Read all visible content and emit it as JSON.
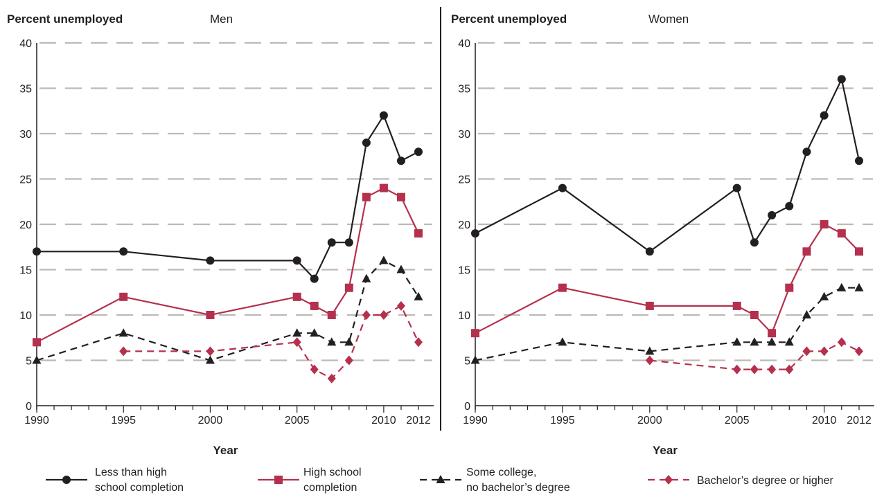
{
  "y_axis_title": "Percent unemployed",
  "x_axis_title": "Year",
  "colors": {
    "less_than_hs": "#231f20",
    "hs": "#b5304d",
    "some_college": "#231f20",
    "bachelors": "#b5304d",
    "grid": "#bdbab5",
    "axis": "#231f20"
  },
  "legend": [
    {
      "id": "lths",
      "lines": [
        "Less than high",
        "school completion"
      ],
      "marker": "circle",
      "dash": "solid",
      "color": "#231f20"
    },
    {
      "id": "hs",
      "lines": [
        "High school",
        "completion"
      ],
      "marker": "square",
      "dash": "solid",
      "color": "#b5304d"
    },
    {
      "id": "sc",
      "lines": [
        "Some college,",
        "no bachelor’s degree"
      ],
      "marker": "triangle",
      "dash": "dashed",
      "color": "#231f20"
    },
    {
      "id": "ba",
      "lines": [
        "Bachelor’s degree or higher"
      ],
      "marker": "diamond",
      "dash": "dashed",
      "color": "#b5304d"
    }
  ],
  "chart_data": [
    {
      "type": "line",
      "title": "Men",
      "ylabel": "Percent unemployed",
      "xlabel": "Year",
      "ylim": [
        0,
        40
      ],
      "yticks": [
        0,
        5,
        10,
        15,
        20,
        25,
        30,
        35,
        40
      ],
      "xlim": [
        1990,
        2012
      ],
      "xtick_labels": [
        "1990",
        "1995",
        "2000",
        "2005",
        "2010",
        "2012"
      ],
      "xtick_values": [
        1990,
        1995,
        2000,
        2005,
        2010,
        2012
      ],
      "grid": true,
      "series": [
        {
          "name": "Less than high school completion",
          "id": "lths",
          "x": [
            1990,
            1995,
            2000,
            2005,
            2006,
            2007,
            2008,
            2009,
            2010,
            2011,
            2012
          ],
          "values": [
            17,
            17,
            16,
            16,
            14,
            18,
            18,
            29,
            32,
            27,
            28
          ]
        },
        {
          "name": "High school completion",
          "id": "hs",
          "x": [
            1990,
            1995,
            2000,
            2005,
            2006,
            2007,
            2008,
            2009,
            2010,
            2011,
            2012
          ],
          "values": [
            7,
            12,
            10,
            12,
            11,
            10,
            13,
            23,
            24,
            23,
            19
          ]
        },
        {
          "name": "Some college, no bachelor’s degree",
          "id": "sc",
          "x": [
            1990,
            1995,
            2000,
            2005,
            2006,
            2007,
            2008,
            2009,
            2010,
            2011,
            2012
          ],
          "values": [
            5,
            8,
            5,
            8,
            8,
            7,
            7,
            14,
            16,
            15,
            12
          ]
        },
        {
          "name": "Bachelor’s degree or higher",
          "id": "ba",
          "x": [
            1995,
            2000,
            2005,
            2006,
            2007,
            2008,
            2009,
            2010,
            2011,
            2012
          ],
          "values": [
            6,
            6,
            7,
            4,
            3,
            5,
            10,
            10,
            11,
            7
          ]
        }
      ]
    },
    {
      "type": "line",
      "title": "Women",
      "ylabel": "Percent unemployed",
      "xlabel": "Year",
      "ylim": [
        0,
        40
      ],
      "yticks": [
        0,
        5,
        10,
        15,
        20,
        25,
        30,
        35,
        40
      ],
      "xlim": [
        1990,
        2012
      ],
      "xtick_labels": [
        "1990",
        "1995",
        "2000",
        "2005",
        "2010",
        "2012"
      ],
      "xtick_values": [
        1990,
        1995,
        2000,
        2005,
        2010,
        2012
      ],
      "grid": true,
      "series": [
        {
          "name": "Less than high school completion",
          "id": "lths",
          "x": [
            1990,
            1995,
            2000,
            2005,
            2006,
            2007,
            2008,
            2009,
            2010,
            2011,
            2012
          ],
          "values": [
            19,
            24,
            17,
            24,
            18,
            21,
            22,
            28,
            32,
            36,
            27
          ]
        },
        {
          "name": "High school completion",
          "id": "hs",
          "x": [
            1990,
            1995,
            2000,
            2005,
            2006,
            2007,
            2008,
            2009,
            2010,
            2011,
            2012
          ],
          "values": [
            8,
            13,
            11,
            11,
            10,
            8,
            13,
            17,
            20,
            19,
            17
          ]
        },
        {
          "name": "Some college, no bachelor’s degree",
          "id": "sc",
          "x": [
            1990,
            1995,
            2000,
            2005,
            2006,
            2007,
            2008,
            2009,
            2010,
            2011,
            2012
          ],
          "values": [
            5,
            7,
            6,
            7,
            7,
            7,
            7,
            10,
            12,
            13,
            13
          ]
        },
        {
          "name": "Bachelor’s degree or higher",
          "id": "ba",
          "x": [
            2000,
            2005,
            2006,
            2007,
            2008,
            2009,
            2010,
            2011,
            2012
          ],
          "values": [
            5,
            4,
            4,
            4,
            4,
            6,
            6,
            7,
            6
          ]
        }
      ]
    }
  ]
}
